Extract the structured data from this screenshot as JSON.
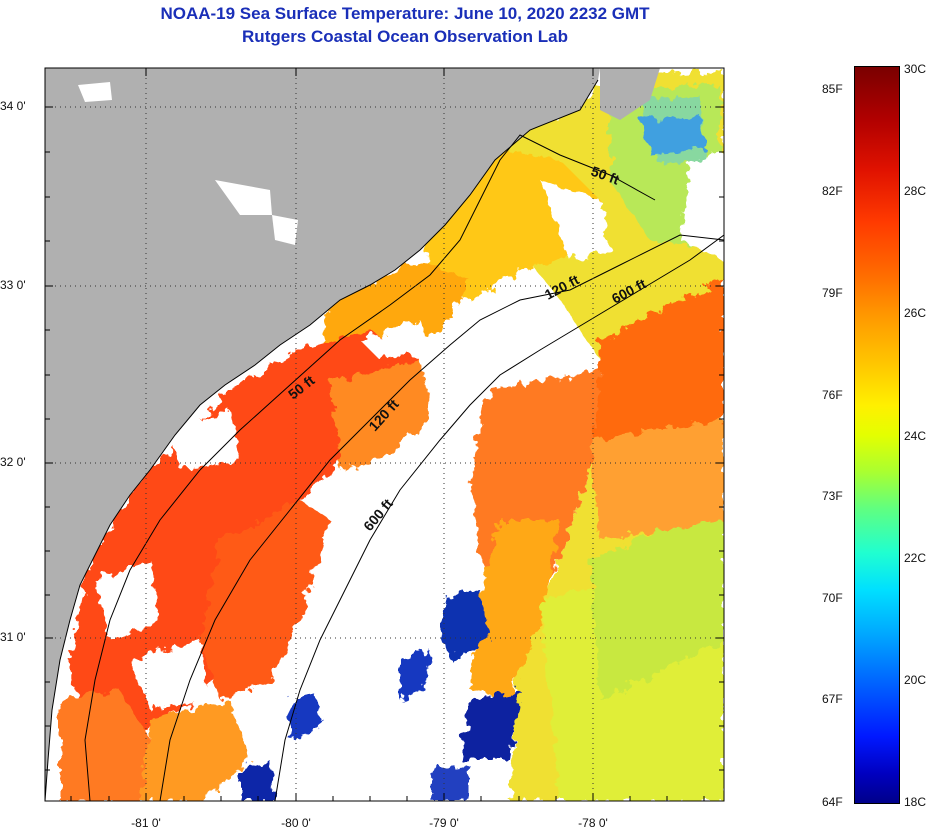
{
  "header": {
    "title": "NOAA-19 Sea Surface Temperature:  June 10, 2020 2232 GMT",
    "subtitle": "Rutgers Coastal Ocean Observation Lab"
  },
  "map": {
    "lat_labels": [
      "34 0'",
      "33 0'",
      "32 0'",
      "31 0'"
    ],
    "lon_labels": [
      "-81 0'",
      "-80 0'",
      "-79 0'",
      "-78 0'"
    ],
    "isobath_labels": [
      "50 ft",
      "120 ft",
      "600 ft",
      "50 ft",
      "120 ft",
      "600 ft"
    ],
    "colors": {
      "land": "#b0b0b0",
      "cloud": "#ffffff",
      "warm": "#ff4a10",
      "mid": "#ffa800",
      "cool": "#e8f020",
      "cold": "#1020a0"
    }
  },
  "colorbar": {
    "fahrenheit": [
      "85F",
      "82F",
      "79F",
      "76F",
      "73F",
      "70F",
      "67F",
      "64F"
    ],
    "celsius": [
      "30C",
      "28C",
      "26C",
      "24C",
      "22C",
      "20C",
      "18C"
    ]
  }
}
